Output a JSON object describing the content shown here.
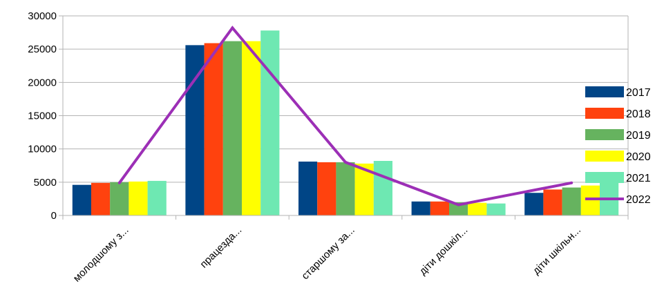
{
  "chart_data": {
    "type": "bar",
    "categories": [
      "молодшому з...",
      "працезда...",
      "старшому за...",
      "діти дошкіл...",
      "діти шкільн..."
    ],
    "series": [
      {
        "name": "2017",
        "type": "bar",
        "color": "#004586",
        "values": [
          4600,
          25600,
          8100,
          2100,
          3400
        ]
      },
      {
        "name": "2018",
        "type": "bar",
        "color": "#ff420e",
        "values": [
          4900,
          25900,
          8000,
          2100,
          3900
        ]
      },
      {
        "name": "2019",
        "type": "bar",
        "color": "#66b35f",
        "values": [
          5000,
          26200,
          8000,
          2000,
          4200
        ]
      },
      {
        "name": "2020",
        "type": "bar",
        "color": "#ffff00",
        "values": [
          5100,
          26200,
          7800,
          1900,
          4500
        ]
      },
      {
        "name": "2021",
        "type": "bar",
        "color": "#6ee8b2",
        "values": [
          5200,
          27800,
          8200,
          1800,
          4900
        ]
      },
      {
        "name": "2022",
        "type": "line",
        "color": "#9c2fb6",
        "values": [
          4900,
          28200,
          8000,
          1600,
          4900
        ]
      }
    ],
    "yticks": [
      0,
      5000,
      10000,
      15000,
      20000,
      25000,
      30000
    ],
    "ylim": [
      0,
      30000
    ],
    "grid": true,
    "legend_position": "right",
    "title": "",
    "xlabel": "",
    "ylabel": ""
  }
}
